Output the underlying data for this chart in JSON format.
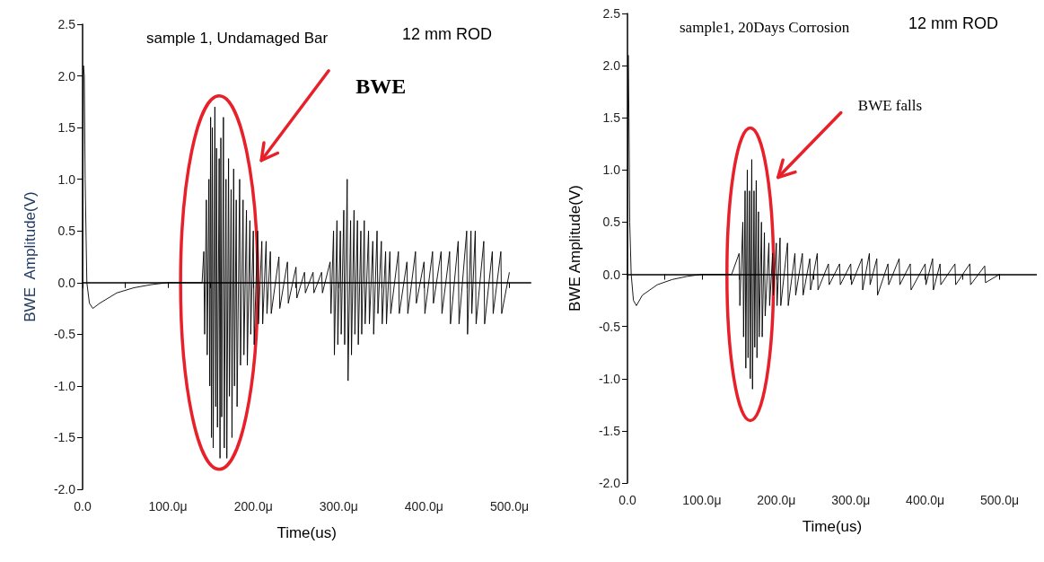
{
  "chart_data": [
    {
      "type": "line",
      "title": "sample 1, Undamaged Bar",
      "xlabel": "Time(us)",
      "ylabel": "BWE  Amplitude(V)",
      "color": "#000000",
      "annotations": [
        "12 mm ROD",
        "BWE"
      ],
      "xlim": [
        0,
        525
      ],
      "ylim": [
        -2.0,
        2.5
      ],
      "xticks": [
        {
          "value": 0,
          "label": "0.0"
        },
        {
          "value": 50,
          "label": null
        },
        {
          "value": 100,
          "label": "100.0μ"
        },
        {
          "value": 150,
          "label": null
        },
        {
          "value": 200,
          "label": "200.0μ"
        },
        {
          "value": 250,
          "label": null
        },
        {
          "value": 300,
          "label": "300.0μ"
        },
        {
          "value": 350,
          "label": null
        },
        {
          "value": 400,
          "label": "400.0μ"
        },
        {
          "value": 450,
          "label": null
        },
        {
          "value": 500,
          "label": "500.0μ"
        }
      ],
      "yticks": [
        {
          "value": -2,
          "label": "-2.0"
        },
        -1.5,
        {
          "value": -1,
          "label": "-1.0"
        },
        -0.5,
        {
          "value": 0,
          "label": "0.0"
        },
        0.5,
        {
          "value": 1,
          "label": "1.0"
        },
        1.5,
        {
          "value": 2,
          "label": "2.0"
        },
        2.5
      ],
      "x": [
        0,
        1,
        2,
        3,
        5,
        8,
        12,
        20,
        40,
        60,
        80,
        100,
        120,
        140,
        142,
        143,
        145,
        146,
        148,
        149,
        150,
        151,
        152,
        153,
        155,
        156,
        157,
        158,
        160,
        161,
        162,
        163,
        165,
        166,
        168,
        169,
        171,
        172,
        174,
        175,
        177,
        178,
        180,
        181,
        184,
        185,
        188,
        189,
        192,
        193,
        196,
        197,
        200,
        201,
        205,
        206,
        210,
        211,
        215,
        216,
        220,
        221,
        230,
        231,
        240,
        241,
        250,
        251,
        260,
        261,
        270,
        271,
        280,
        281,
        290,
        291,
        294,
        295,
        298,
        299,
        302,
        303,
        306,
        307,
        310,
        311,
        314,
        315,
        318,
        319,
        322,
        323,
        326,
        327,
        330,
        331,
        335,
        336,
        340,
        341,
        345,
        346,
        350,
        351,
        355,
        356,
        360,
        361,
        370,
        371,
        380,
        381,
        390,
        391,
        400,
        401,
        410,
        411,
        420,
        421,
        430,
        431,
        440,
        441,
        450,
        451,
        455,
        456,
        460,
        461,
        470,
        471,
        480,
        481,
        490,
        491,
        500
      ],
      "values": [
        0,
        2.1,
        2.0,
        1.0,
        0,
        -0.2,
        -0.25,
        -0.2,
        -0.1,
        -0.05,
        -0.02,
        0,
        0,
        0,
        0.3,
        -0.5,
        0.8,
        -0.7,
        1.0,
        -1.0,
        1.6,
        -1.5,
        1.5,
        -1.6,
        1.7,
        -1.2,
        1.3,
        -1.4,
        1.2,
        -1.7,
        1.4,
        -1.3,
        1.6,
        -1.6,
        1.0,
        -1.7,
        1.2,
        -1.1,
        0.9,
        -1.5,
        1.1,
        -1.0,
        0.8,
        -1.2,
        1.0,
        -0.8,
        0.8,
        -0.7,
        0.7,
        -0.8,
        0.6,
        -0.5,
        0.5,
        -0.6,
        0.5,
        -0.4,
        0.4,
        -0.4,
        0.4,
        -0.3,
        0.3,
        -0.3,
        0.25,
        -0.25,
        0.2,
        -0.2,
        0.15,
        -0.15,
        0.1,
        -0.1,
        0.1,
        -0.1,
        0.1,
        -0.1,
        0.2,
        -0.3,
        0.5,
        -0.7,
        0.6,
        -0.6,
        0.5,
        -0.5,
        0.7,
        -0.6,
        1.0,
        -0.95,
        0.6,
        -0.7,
        0.7,
        -0.5,
        0.6,
        -0.6,
        0.5,
        -0.5,
        0.6,
        -0.4,
        0.5,
        -0.4,
        0.4,
        -0.5,
        0.5,
        -0.3,
        0.4,
        -0.4,
        0.3,
        -0.4,
        0.3,
        -0.3,
        0.3,
        -0.3,
        0.2,
        -0.3,
        0.3,
        -0.2,
        0.2,
        -0.3,
        0.3,
        -0.2,
        0.3,
        -0.3,
        0.3,
        -0.4,
        0.4,
        -0.4,
        0.5,
        -0.5,
        0.5,
        -0.3,
        0.5,
        -0.4,
        0.4,
        -0.4,
        0.3,
        -0.3,
        0.3,
        -0.3,
        0.1
      ]
    },
    {
      "type": "line",
      "title": "sample1, 20Days Corrosion",
      "xlabel": "Time(us)",
      "ylabel": "BWE Amplitude(V)",
      "color": "#000000",
      "annotations": [
        "12 mm ROD",
        "BWE falls"
      ],
      "xlim": [
        0,
        550
      ],
      "ylim": [
        -2.0,
        2.5
      ],
      "xticks": [
        {
          "value": 0,
          "label": "0.0"
        },
        {
          "value": 50,
          "label": null
        },
        {
          "value": 100,
          "label": "100.0μ"
        },
        {
          "value": 150,
          "label": null
        },
        {
          "value": 200,
          "label": "200.0μ"
        },
        {
          "value": 250,
          "label": null
        },
        {
          "value": 300,
          "label": "300.0μ"
        },
        {
          "value": 350,
          "label": null
        },
        {
          "value": 400,
          "label": "400.0μ"
        },
        {
          "value": 450,
          "label": null
        },
        {
          "value": 500,
          "label": "500.0μ"
        }
      ],
      "yticks": [
        {
          "value": -2,
          "label": "-2.0"
        },
        -1.5,
        {
          "value": -1,
          "label": "-1.0"
        },
        -0.5,
        {
          "value": 0,
          "label": "0.0"
        },
        0.5,
        {
          "value": 1,
          "label": "1.0"
        },
        1.5,
        {
          "value": 2,
          "label": "2.0"
        },
        2.5
      ],
      "x": [
        0,
        1,
        2,
        3,
        5,
        8,
        12,
        20,
        40,
        60,
        80,
        100,
        130,
        140,
        150,
        151,
        155,
        156,
        158,
        159,
        161,
        162,
        164,
        165,
        167,
        168,
        170,
        171,
        173,
        174,
        176,
        177,
        180,
        181,
        184,
        185,
        190,
        191,
        195,
        196,
        200,
        201,
        205,
        206,
        215,
        216,
        225,
        226,
        235,
        236,
        245,
        246,
        255,
        256,
        270,
        271,
        285,
        286,
        300,
        301,
        315,
        316,
        325,
        326,
        335,
        336,
        350,
        351,
        365,
        366,
        380,
        381,
        400,
        401,
        410,
        411,
        420,
        421,
        440,
        441,
        460,
        461,
        480,
        481,
        500
      ],
      "values": [
        0,
        2.1,
        1.5,
        0.5,
        0,
        -0.25,
        -0.3,
        -0.2,
        -0.1,
        -0.05,
        -0.02,
        0,
        0,
        0,
        0.2,
        -0.3,
        0.5,
        -0.6,
        0.8,
        -0.9,
        1.0,
        -0.8,
        0.8,
        -1.0,
        1.1,
        -1.1,
        0.8,
        -0.7,
        0.9,
        -0.8,
        0.6,
        -0.6,
        0.5,
        -0.6,
        0.4,
        -0.4,
        0.3,
        -0.3,
        0.2,
        -0.2,
        0.3,
        -0.3,
        0.35,
        -0.3,
        0.3,
        -0.3,
        0.2,
        -0.2,
        0.2,
        -0.2,
        0.15,
        -0.15,
        0.2,
        -0.15,
        0.1,
        -0.1,
        0.1,
        -0.1,
        0.1,
        -0.1,
        0.15,
        -0.15,
        0.2,
        -0.1,
        0.15,
        -0.2,
        0.1,
        -0.1,
        0.15,
        -0.1,
        0.1,
        -0.15,
        0.1,
        -0.1,
        0.15,
        -0.15,
        0.1,
        -0.1,
        0.1,
        -0.1,
        0.1,
        -0.1,
        0.08,
        -0.08,
        0
      ]
    }
  ]
}
